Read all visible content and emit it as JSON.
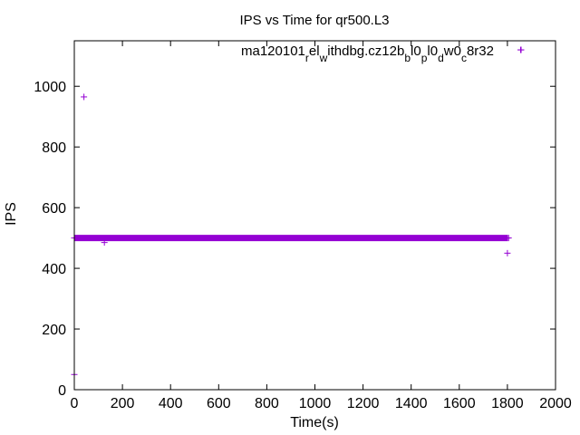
{
  "chart_data": {
    "type": "scatter",
    "title": "IPS vs Time for qr500.L3",
    "xlabel": "Time(s)",
    "ylabel": "IPS",
    "xlim": [
      0,
      2000
    ],
    "ylim": [
      0,
      1150
    ],
    "xticks": [
      0,
      200,
      400,
      600,
      800,
      1000,
      1200,
      1400,
      1600,
      1800,
      2000
    ],
    "yticks": [
      0,
      200,
      400,
      600,
      800,
      1000
    ],
    "grid": false,
    "legend_position": "top-right",
    "legend_parts": [
      {
        "text": "ma120101",
        "sub": false
      },
      {
        "text": "r",
        "sub": true
      },
      {
        "text": "el",
        "sub": false
      },
      {
        "text": "w",
        "sub": true
      },
      {
        "text": "ithdbg.cz12b",
        "sub": false
      },
      {
        "text": "b",
        "sub": true
      },
      {
        "text": "l0",
        "sub": false
      },
      {
        "text": "p",
        "sub": true
      },
      {
        "text": "l0",
        "sub": false
      },
      {
        "text": "d",
        "sub": true
      },
      {
        "text": "w0",
        "sub": false
      },
      {
        "text": "c",
        "sub": true
      },
      {
        "text": "8r32",
        "sub": false
      }
    ],
    "series": [
      {
        "color": "#9400d3",
        "marker": "+",
        "dense_range": {
          "x_start": 0,
          "x_end": 1800,
          "step": 1,
          "y": 500
        },
        "points": [
          {
            "x": 0,
            "y": 50
          },
          {
            "x": 40,
            "y": 965
          },
          {
            "x": 125,
            "y": 485
          },
          {
            "x": 1800,
            "y": 450
          },
          {
            "x": 1805,
            "y": 500
          },
          {
            "x": 1855,
            "y": 1120
          }
        ]
      }
    ]
  }
}
